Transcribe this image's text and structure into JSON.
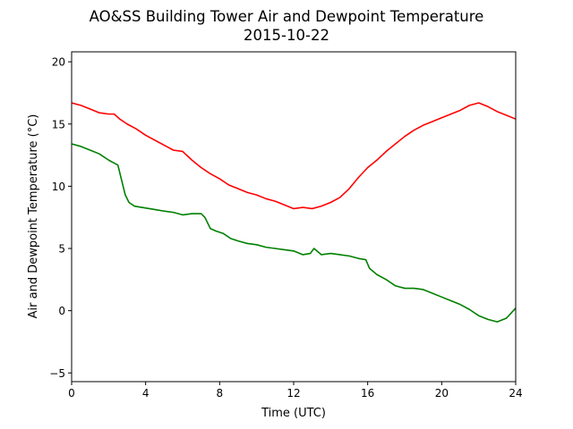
{
  "chart_data": {
    "type": "line",
    "title": "AO&SS Building Tower Air and Dewpoint Temperature",
    "subtitle": "2015-10-22",
    "xlabel": "Time (UTC)",
    "ylabel": "Air and Dewpoint Temperature (°C)",
    "xlim": [
      0,
      24
    ],
    "ylim": [
      -5.7,
      20.8
    ],
    "xticks": [
      0,
      4,
      8,
      12,
      16,
      20,
      24
    ],
    "yticks": [
      -5,
      0,
      5,
      10,
      15,
      20
    ],
    "grid": false,
    "legend": "none",
    "series": [
      {
        "color": "#ff0000",
        "x": [
          0,
          0.5,
          1,
          1.5,
          2,
          2.3,
          2.6,
          3,
          3.5,
          4,
          4.5,
          5,
          5.5,
          6,
          6.5,
          7,
          7.5,
          8,
          8.5,
          9,
          9.5,
          10,
          10.5,
          11,
          11.5,
          12,
          12.5,
          13,
          13.5,
          14,
          14.5,
          15,
          15.5,
          16,
          16.5,
          17,
          17.5,
          18,
          18.5,
          19,
          19.5,
          20,
          20.5,
          21,
          21.5,
          22,
          22.5,
          23,
          23.5,
          24
        ],
        "values": [
          16.7,
          16.5,
          16.2,
          15.9,
          15.8,
          15.8,
          15.4,
          15.0,
          14.6,
          14.1,
          13.7,
          13.3,
          12.9,
          12.8,
          12.1,
          11.5,
          11.0,
          10.6,
          10.1,
          9.8,
          9.5,
          9.3,
          9.0,
          8.8,
          8.5,
          8.2,
          8.3,
          8.2,
          8.4,
          8.7,
          9.1,
          9.8,
          10.7,
          11.5,
          12.1,
          12.8,
          13.4,
          14.0,
          14.5,
          14.9,
          15.2,
          15.5,
          15.8,
          16.1,
          16.5,
          16.7,
          16.4,
          16.0,
          15.7,
          15.4
        ]
      },
      {
        "color": "#008000",
        "x": [
          0,
          0.5,
          1,
          1.5,
          2,
          2.5,
          2.7,
          2.9,
          3.1,
          3.4,
          3.8,
          4.2,
          4.6,
          5,
          5.5,
          6,
          6.5,
          7,
          7.2,
          7.5,
          7.8,
          8.2,
          8.6,
          9,
          9.5,
          10,
          10.5,
          11,
          11.5,
          12,
          12.5,
          12.9,
          13.1,
          13.5,
          14,
          14.5,
          15,
          15.5,
          15.9,
          16.1,
          16.5,
          17,
          17.5,
          18,
          18.5,
          19,
          19.5,
          20,
          20.5,
          21,
          21.5,
          22,
          22.5,
          23,
          23.5,
          24
        ],
        "values": [
          13.4,
          13.2,
          12.9,
          12.6,
          12.1,
          11.7,
          10.5,
          9.3,
          8.7,
          8.4,
          8.3,
          8.2,
          8.1,
          8.0,
          7.9,
          7.7,
          7.8,
          7.8,
          7.5,
          6.6,
          6.4,
          6.2,
          5.8,
          5.6,
          5.4,
          5.3,
          5.1,
          5.0,
          4.9,
          4.8,
          4.5,
          4.6,
          5.0,
          4.5,
          4.6,
          4.5,
          4.4,
          4.2,
          4.1,
          3.4,
          2.9,
          2.5,
          2.0,
          1.8,
          1.8,
          1.7,
          1.4,
          1.1,
          0.8,
          0.5,
          0.1,
          -0.4,
          -0.7,
          -0.9,
          -0.6,
          0.2
        ]
      }
    ]
  }
}
